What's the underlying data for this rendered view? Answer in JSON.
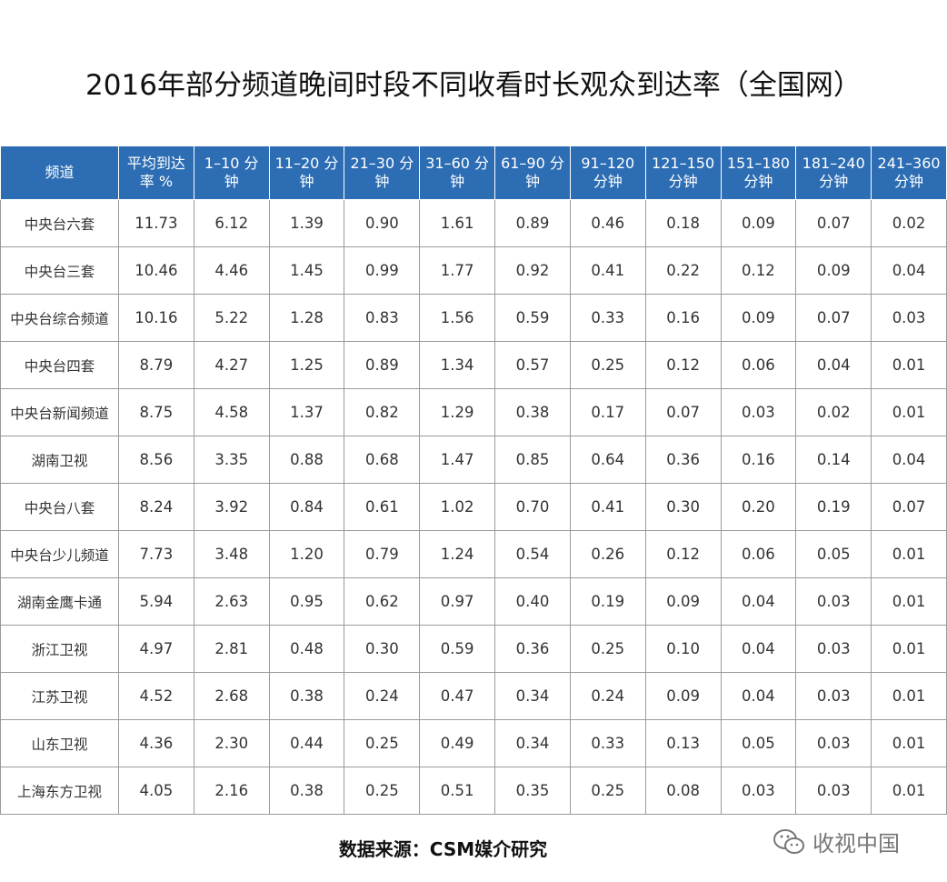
{
  "header": {
    "title": "2016年部分频道晚间时段不同收看时长观众到达率（全国网）"
  },
  "table": {
    "columns": [
      [
        "频道"
      ],
      [
        "平均到达",
        "率 %"
      ],
      [
        "1–10 分",
        "钟"
      ],
      [
        "11–20 分",
        "钟"
      ],
      [
        "21–30 分",
        "钟"
      ],
      [
        "31–60 分",
        "钟"
      ],
      [
        "61–90 分",
        "钟"
      ],
      [
        "91–120",
        "分钟"
      ],
      [
        "121–150",
        "分钟"
      ],
      [
        "151–180",
        "分钟"
      ],
      [
        "181–240",
        "分钟"
      ],
      [
        "241–360",
        "分钟"
      ]
    ],
    "rows": [
      [
        "中央台六套",
        "11.73",
        "6.12",
        "1.39",
        "0.90",
        "1.61",
        "0.89",
        "0.46",
        "0.18",
        "0.09",
        "0.07",
        "0.02"
      ],
      [
        "中央台三套",
        "10.46",
        "4.46",
        "1.45",
        "0.99",
        "1.77",
        "0.92",
        "0.41",
        "0.22",
        "0.12",
        "0.09",
        "0.04"
      ],
      [
        "中央台综合频道",
        "10.16",
        "5.22",
        "1.28",
        "0.83",
        "1.56",
        "0.59",
        "0.33",
        "0.16",
        "0.09",
        "0.07",
        "0.03"
      ],
      [
        "中央台四套",
        "8.79",
        "4.27",
        "1.25",
        "0.89",
        "1.34",
        "0.57",
        "0.25",
        "0.12",
        "0.06",
        "0.04",
        "0.01"
      ],
      [
        "中央台新闻频道",
        "8.75",
        "4.58",
        "1.37",
        "0.82",
        "1.29",
        "0.38",
        "0.17",
        "0.07",
        "0.03",
        "0.02",
        "0.01"
      ],
      [
        "湖南卫视",
        "8.56",
        "3.35",
        "0.88",
        "0.68",
        "1.47",
        "0.85",
        "0.64",
        "0.36",
        "0.16",
        "0.14",
        "0.04"
      ],
      [
        "中央台八套",
        "8.24",
        "3.92",
        "0.84",
        "0.61",
        "1.02",
        "0.70",
        "0.41",
        "0.30",
        "0.20",
        "0.19",
        "0.07"
      ],
      [
        "中央台少儿频道",
        "7.73",
        "3.48",
        "1.20",
        "0.79",
        "1.24",
        "0.54",
        "0.26",
        "0.12",
        "0.06",
        "0.05",
        "0.01"
      ],
      [
        "湖南金鹰卡通",
        "5.94",
        "2.63",
        "0.95",
        "0.62",
        "0.97",
        "0.40",
        "0.19",
        "0.09",
        "0.04",
        "0.03",
        "0.01"
      ],
      [
        "浙江卫视",
        "4.97",
        "2.81",
        "0.48",
        "0.30",
        "0.59",
        "0.36",
        "0.25",
        "0.10",
        "0.04",
        "0.03",
        "0.01"
      ],
      [
        "江苏卫视",
        "4.52",
        "2.68",
        "0.38",
        "0.24",
        "0.47",
        "0.34",
        "0.24",
        "0.09",
        "0.04",
        "0.03",
        "0.01"
      ],
      [
        "山东卫视",
        "4.36",
        "2.30",
        "0.44",
        "0.25",
        "0.49",
        "0.34",
        "0.33",
        "0.13",
        "0.05",
        "0.03",
        "0.01"
      ],
      [
        "上海东方卫视",
        "4.05",
        "2.16",
        "0.38",
        "0.25",
        "0.51",
        "0.35",
        "0.25",
        "0.08",
        "0.03",
        "0.03",
        "0.01"
      ]
    ]
  },
  "footer": {
    "source": "数据来源：CSM媒介研究",
    "watermark": "收视中国"
  }
}
